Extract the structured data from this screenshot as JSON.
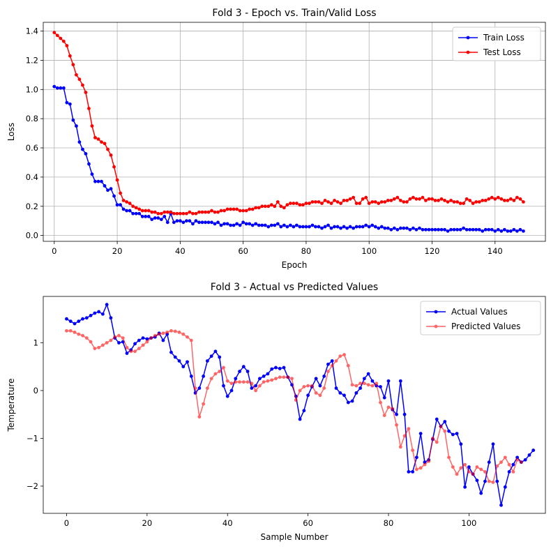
{
  "chart_data": [
    {
      "type": "line",
      "title": "Fold 3 - Epoch vs. Train/Valid Loss",
      "xlabel": "Epoch",
      "ylabel": "Loss",
      "xlim": [
        -3.5,
        156
      ],
      "ylim": [
        -0.04,
        1.46
      ],
      "xticks": [
        0,
        20,
        40,
        60,
        80,
        100,
        120,
        140
      ],
      "yticks": [
        0.0,
        0.2,
        0.4,
        0.6,
        0.8,
        1.0,
        1.2,
        1.4
      ],
      "ytick_decimals": 1,
      "grid": true,
      "legend_position": "top-right",
      "series": [
        {
          "name": "Train Loss",
          "color": "#0000ff",
          "alpha": 1,
          "x_start": 0,
          "values": [
            1.02,
            1.01,
            1.01,
            1.01,
            0.91,
            0.9,
            0.79,
            0.75,
            0.64,
            0.59,
            0.56,
            0.49,
            0.42,
            0.37,
            0.37,
            0.37,
            0.34,
            0.31,
            0.32,
            0.27,
            0.21,
            0.21,
            0.18,
            0.17,
            0.17,
            0.15,
            0.15,
            0.15,
            0.13,
            0.13,
            0.13,
            0.11,
            0.12,
            0.12,
            0.11,
            0.13,
            0.09,
            0.15,
            0.09,
            0.1,
            0.1,
            0.09,
            0.1,
            0.1,
            0.08,
            0.1,
            0.09,
            0.09,
            0.09,
            0.09,
            0.09,
            0.08,
            0.09,
            0.07,
            0.08,
            0.08,
            0.07,
            0.07,
            0.08,
            0.07,
            0.09,
            0.08,
            0.08,
            0.07,
            0.08,
            0.07,
            0.07,
            0.07,
            0.06,
            0.07,
            0.07,
            0.08,
            0.06,
            0.07,
            0.06,
            0.07,
            0.06,
            0.07,
            0.06,
            0.06,
            0.06,
            0.06,
            0.07,
            0.06,
            0.06,
            0.05,
            0.06,
            0.07,
            0.05,
            0.06,
            0.06,
            0.05,
            0.06,
            0.05,
            0.06,
            0.05,
            0.06,
            0.06,
            0.06,
            0.07,
            0.06,
            0.07,
            0.06,
            0.05,
            0.06,
            0.05,
            0.05,
            0.04,
            0.05,
            0.04,
            0.05,
            0.05,
            0.05,
            0.04,
            0.05,
            0.04,
            0.05,
            0.04,
            0.04,
            0.04,
            0.04,
            0.04,
            0.04,
            0.04,
            0.04,
            0.03,
            0.04,
            0.04,
            0.04,
            0.04,
            0.05,
            0.04,
            0.04,
            0.04,
            0.04,
            0.04,
            0.03,
            0.04,
            0.04,
            0.04,
            0.03,
            0.04,
            0.03,
            0.04,
            0.03,
            0.03,
            0.04,
            0.03,
            0.04,
            0.03
          ]
        },
        {
          "name": "Test Loss",
          "color": "#ff0000",
          "alpha": 1,
          "x_start": 0,
          "values": [
            1.39,
            1.37,
            1.35,
            1.33,
            1.3,
            1.23,
            1.17,
            1.1,
            1.07,
            1.03,
            0.98,
            0.87,
            0.75,
            0.67,
            0.66,
            0.64,
            0.63,
            0.59,
            0.55,
            0.47,
            0.38,
            0.29,
            0.24,
            0.23,
            0.22,
            0.2,
            0.19,
            0.18,
            0.17,
            0.17,
            0.17,
            0.16,
            0.16,
            0.15,
            0.15,
            0.16,
            0.16,
            0.16,
            0.15,
            0.15,
            0.15,
            0.15,
            0.15,
            0.16,
            0.15,
            0.15,
            0.16,
            0.16,
            0.16,
            0.16,
            0.17,
            0.16,
            0.16,
            0.17,
            0.17,
            0.18,
            0.18,
            0.18,
            0.18,
            0.17,
            0.17,
            0.17,
            0.18,
            0.18,
            0.19,
            0.19,
            0.2,
            0.2,
            0.2,
            0.21,
            0.2,
            0.23,
            0.2,
            0.19,
            0.21,
            0.22,
            0.22,
            0.22,
            0.21,
            0.21,
            0.22,
            0.22,
            0.23,
            0.23,
            0.23,
            0.22,
            0.24,
            0.23,
            0.22,
            0.24,
            0.23,
            0.22,
            0.24,
            0.24,
            0.25,
            0.26,
            0.22,
            0.22,
            0.25,
            0.26,
            0.22,
            0.23,
            0.23,
            0.22,
            0.23,
            0.23,
            0.24,
            0.24,
            0.25,
            0.26,
            0.24,
            0.23,
            0.23,
            0.25,
            0.26,
            0.25,
            0.25,
            0.26,
            0.24,
            0.25,
            0.25,
            0.24,
            0.24,
            0.25,
            0.24,
            0.23,
            0.24,
            0.23,
            0.23,
            0.22,
            0.22,
            0.25,
            0.24,
            0.22,
            0.23,
            0.23,
            0.24,
            0.24,
            0.25,
            0.26,
            0.25,
            0.26,
            0.25,
            0.24,
            0.24,
            0.25,
            0.24,
            0.26,
            0.25,
            0.23
          ]
        }
      ]
    },
    {
      "type": "line",
      "title": "Fold 3 - Actual vs Predicted Values",
      "xlabel": "Sample Number",
      "ylabel": "Temperature",
      "xlim": [
        -5.8,
        119
      ],
      "ylim": [
        -2.57,
        1.97
      ],
      "xticks": [
        0,
        20,
        40,
        60,
        80,
        100
      ],
      "yticks": [
        -2,
        -1,
        0,
        1
      ],
      "ytick_decimals": 0,
      "grid": false,
      "legend_position": "top-right",
      "series": [
        {
          "name": "Actual Values",
          "color": "#0000ff",
          "alpha": 1,
          "x_start": 0,
          "values": [
            1.5,
            1.45,
            1.4,
            1.45,
            1.5,
            1.52,
            1.57,
            1.62,
            1.65,
            1.6,
            1.8,
            1.52,
            1.1,
            1.0,
            1.02,
            0.78,
            0.85,
            0.98,
            1.05,
            1.1,
            1.08,
            1.1,
            1.12,
            1.2,
            1.05,
            1.18,
            0.8,
            0.7,
            0.62,
            0.5,
            0.6,
            0.3,
            -0.05,
            0.05,
            0.3,
            0.62,
            0.72,
            0.82,
            0.7,
            0.1,
            -0.12,
            0.0,
            0.25,
            0.4,
            0.5,
            0.4,
            0.05,
            0.1,
            0.25,
            0.3,
            0.35,
            0.45,
            0.48,
            0.46,
            0.48,
            0.28,
            0.12,
            -0.12,
            -0.6,
            -0.42,
            -0.1,
            0.08,
            0.25,
            0.1,
            0.3,
            0.55,
            0.62,
            0.05,
            -0.05,
            -0.1,
            -0.25,
            -0.22,
            -0.05,
            0.05,
            0.25,
            0.35,
            0.2,
            0.1,
            0.08,
            -0.15,
            0.2,
            -0.4,
            -0.5,
            0.2,
            -0.5,
            -1.7,
            -1.7,
            -1.4,
            -0.9,
            -1.5,
            -1.45,
            -1.02,
            -0.6,
            -0.75,
            -0.65,
            -0.85,
            -0.92,
            -0.9,
            -1.12,
            -2.02,
            -1.6,
            -1.75,
            -1.88,
            -2.15,
            -1.9,
            -1.5,
            -1.12,
            -1.9,
            -2.4,
            -2.02,
            -1.7,
            -1.55,
            -1.4,
            -1.5,
            -1.45,
            -1.35,
            -1.25
          ]
        },
        {
          "name": "Predicted Values",
          "color": "#ff0000",
          "alpha": 0.6,
          "x_start": 0,
          "values": [
            1.25,
            1.25,
            1.22,
            1.18,
            1.15,
            1.1,
            1.02,
            0.88,
            0.9,
            0.95,
            1.0,
            1.05,
            1.12,
            1.15,
            1.1,
            0.9,
            0.82,
            0.82,
            0.88,
            0.95,
            1.02,
            1.1,
            1.15,
            1.18,
            1.2,
            1.22,
            1.25,
            1.24,
            1.22,
            1.18,
            1.12,
            1.05,
            0.05,
            -0.55,
            -0.28,
            0.05,
            0.25,
            0.35,
            0.4,
            0.48,
            0.2,
            0.15,
            0.18,
            0.18,
            0.18,
            0.18,
            0.15,
            0.0,
            0.1,
            0.18,
            0.2,
            0.22,
            0.25,
            0.28,
            0.28,
            0.28,
            0.25,
            -0.2,
            0.0,
            0.08,
            0.1,
            0.1,
            -0.05,
            -0.1,
            0.05,
            0.4,
            0.52,
            0.62,
            0.72,
            0.75,
            0.52,
            0.12,
            0.1,
            0.15,
            0.15,
            0.12,
            0.1,
            0.15,
            -0.25,
            -0.52,
            -0.35,
            -0.38,
            -0.72,
            -1.18,
            -0.95,
            -0.8,
            -1.25,
            -1.65,
            -1.62,
            -1.55,
            -1.48,
            -1.0,
            -1.08,
            -0.75,
            -0.85,
            -1.4,
            -1.6,
            -1.75,
            -1.62,
            -1.55,
            -1.7,
            -1.75,
            -1.6,
            -1.65,
            -1.7,
            -1.9,
            -1.92,
            -1.58,
            -1.5,
            -1.4,
            -1.55,
            -1.7,
            -1.45,
            -1.5
          ]
        }
      ]
    }
  ]
}
